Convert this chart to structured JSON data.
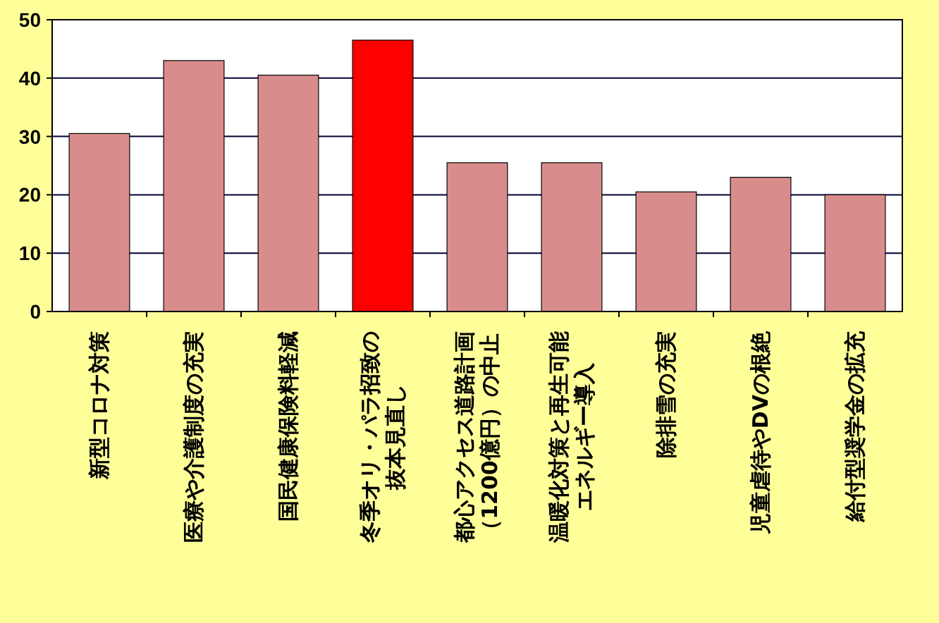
{
  "chart_data": {
    "type": "bar",
    "categories": [
      "新型コロナ対策",
      "医療や介護制度の充実",
      "国民健康保険料軽減",
      "冬季オリ・パラ招致の抜本見直し",
      "都心アクセス道路計画（1200億円）の中止",
      "温暖化対策と再生可能エネルギー導入",
      "除排雪の充実",
      "児童虐待やDVの根絶",
      "給付型奨学金の拡充"
    ],
    "values": [
      30.5,
      43,
      40.5,
      46.5,
      25.5,
      25.5,
      20.5,
      23,
      20
    ],
    "colors": [
      "#d98c8c",
      "#d98c8c",
      "#d98c8c",
      "#ff0000",
      "#d98c8c",
      "#d98c8c",
      "#d98c8c",
      "#d98c8c",
      "#d98c8c"
    ],
    "ylim": [
      0,
      50
    ],
    "yticks": [
      0,
      10,
      20,
      30,
      40,
      50
    ],
    "grid": "y"
  }
}
